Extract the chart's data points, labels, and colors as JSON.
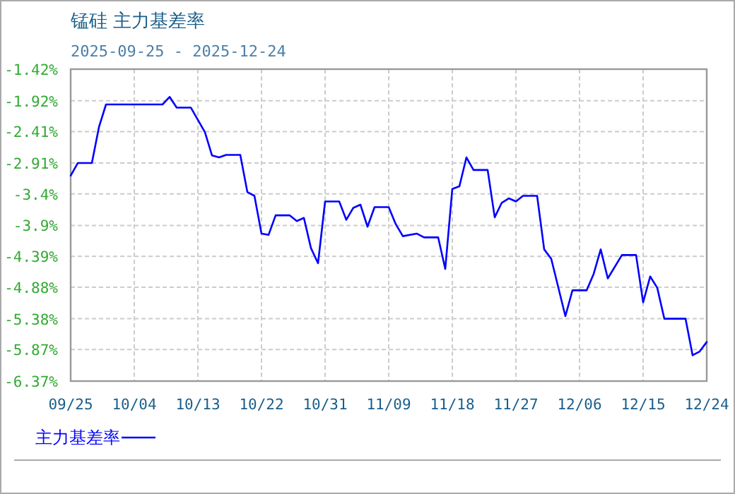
{
  "chart_data": {
    "type": "line",
    "title": "锰硅 主力基差率",
    "subtitle": "2025-09-25 - 2025-12-24",
    "x": [
      "--09-25",
      "--09-26",
      "--09-28",
      "--09-29",
      "--09-30",
      "--10-08",
      "--10-09",
      "--10-10",
      "--10-12",
      "--10-14",
      "--10-15",
      "--10-16",
      "--10-17",
      "--10-19",
      "--10-20",
      "--10-21",
      "--10-22",
      "--10-23",
      "--10-24",
      "--10-26",
      "--10-27",
      "--10-28",
      "--10-29",
      "--10-30",
      "--10-31",
      "--11-02",
      "--11-03",
      "--11-04",
      "--11-05",
      "--11-06",
      "--11-07",
      "--11-09",
      "--11-10",
      "--11-11",
      "--11-13",
      "--11-14",
      "--11-16",
      "--11-17",
      "--11-18",
      "--11-19",
      "--11-20",
      "--11-21",
      "--11-23",
      "--11-24",
      "--11-25",
      "--11-26",
      "--11-27",
      "--11-28",
      "--11-30",
      "--12-01",
      "--12-02",
      "--12-04",
      "--12-05",
      "--12-07",
      "--12-08",
      "--12-09",
      "--12-10",
      "--12-12",
      "--12-14",
      "--12-15",
      "--12-16",
      "--12-17",
      "--12-18",
      "--12-21",
      "--12-22",
      "--12-23",
      "--12-24"
    ],
    "series": [
      {
        "name": "主力基差率",
        "color": "#0000ff",
        "values": [
          -3.11,
          -2.91,
          -2.91,
          -2.34,
          -1.98,
          -1.98,
          -1.86,
          -2.03,
          -2.03,
          -2.42,
          -2.79,
          -2.82,
          -2.78,
          -2.78,
          -3.37,
          -3.43,
          -4.03,
          -4.05,
          -3.74,
          -3.74,
          -3.83,
          -3.78,
          -4.26,
          -4.5,
          -3.52,
          -3.52,
          -3.81,
          -3.62,
          -3.57,
          -3.92,
          -3.61,
          -3.61,
          -3.88,
          -4.07,
          -4.03,
          -4.09,
          -4.09,
          -4.59,
          -3.32,
          -3.28,
          -2.82,
          -3.02,
          -3.02,
          -3.77,
          -3.54,
          -3.47,
          -3.52,
          -3.43,
          -3.43,
          -4.28,
          -4.43,
          -5.34,
          -4.93,
          -4.93,
          -4.67,
          -4.28,
          -4.74,
          -4.37,
          -4.37,
          -5.12,
          -4.71,
          -4.89,
          -5.38,
          -5.38,
          -5.96,
          -5.9,
          -5.75
        ]
      }
    ],
    "xlim": [
      "--09-25",
      "--12-24"
    ],
    "xticks": [
      {
        "value": "--09-25",
        "label": "09/25"
      },
      {
        "value": "--10-04",
        "label": "10/04"
      },
      {
        "value": "--10-13",
        "label": "10/13"
      },
      {
        "value": "--10-22",
        "label": "10/22"
      },
      {
        "value": "--10-31",
        "label": "10/31"
      },
      {
        "value": "--11-09",
        "label": "11/09"
      },
      {
        "value": "--11-18",
        "label": "11/18"
      },
      {
        "value": "--11-27",
        "label": "11/27"
      },
      {
        "value": "--12-06",
        "label": "12/06"
      },
      {
        "value": "--12-15",
        "label": "12/15"
      },
      {
        "value": "--12-24",
        "label": "12/24"
      }
    ],
    "ylim": [
      -6.37,
      -1.42
    ],
    "yticks": [
      {
        "value": -1.42,
        "label": "-1.42%"
      },
      {
        "value": -1.92,
        "label": "-1.92%"
      },
      {
        "value": -2.41,
        "label": "-2.41%"
      },
      {
        "value": -2.91,
        "label": "-2.91%"
      },
      {
        "value": -3.4,
        "label": "-3.4%"
      },
      {
        "value": -3.9,
        "label": "-3.9%"
      },
      {
        "value": -4.39,
        "label": "-4.39%"
      },
      {
        "value": -4.88,
        "label": "-4.88%"
      },
      {
        "value": -5.38,
        "label": "-5.38%"
      },
      {
        "value": -5.87,
        "label": "-5.87%"
      },
      {
        "value": -6.37,
        "label": "-6.37%"
      }
    ],
    "grid": true,
    "legend": "bottom left",
    "marker": "none",
    "line_style": "solid"
  }
}
